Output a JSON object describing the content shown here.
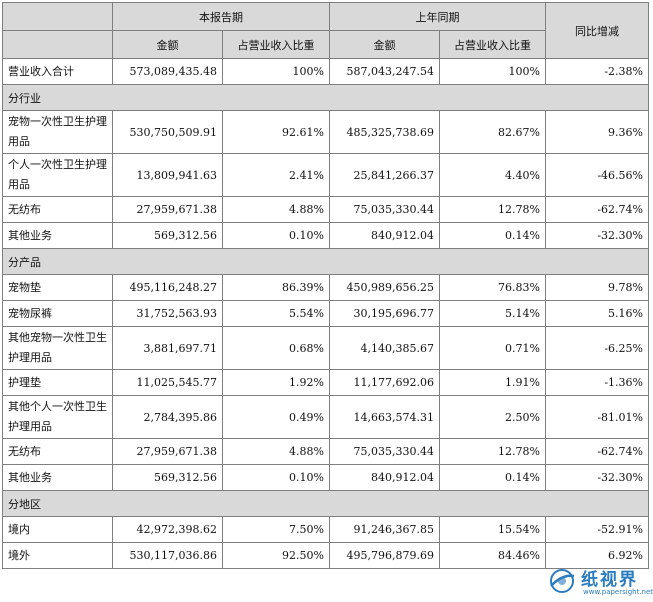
{
  "header": {
    "current_period": "本报告期",
    "prior_period": "上年同期",
    "yoy_change": "同比增减",
    "amount": "金额",
    "share": "占营业收入比重"
  },
  "total": {
    "label": "营业收入合计",
    "cur_amount": "573,089,435.48",
    "cur_share": "100%",
    "prev_amount": "587,043,247.54",
    "prev_share": "100%",
    "change": "-2.38%"
  },
  "by_industry": {
    "title": "分行业",
    "rows": [
      {
        "label": "宠物一次性卫生护理用品",
        "cur_amount": "530,750,509.91",
        "cur_share": "92.61%",
        "prev_amount": "485,325,738.69",
        "prev_share": "82.67%",
        "change": "9.36%"
      },
      {
        "label": "个人一次性卫生护理用品",
        "cur_amount": "13,809,941.63",
        "cur_share": "2.41%",
        "prev_amount": "25,841,266.37",
        "prev_share": "4.40%",
        "change": "-46.56%"
      },
      {
        "label": "无纺布",
        "cur_amount": "27,959,671.38",
        "cur_share": "4.88%",
        "prev_amount": "75,035,330.44",
        "prev_share": "12.78%",
        "change": "-62.74%"
      },
      {
        "label": "其他业务",
        "cur_amount": "569,312.56",
        "cur_share": "0.10%",
        "prev_amount": "840,912.04",
        "prev_share": "0.14%",
        "change": "-32.30%"
      }
    ]
  },
  "by_product": {
    "title": "分产品",
    "rows": [
      {
        "label": "宠物垫",
        "cur_amount": "495,116,248.27",
        "cur_share": "86.39%",
        "prev_amount": "450,989,656.25",
        "prev_share": "76.83%",
        "change": "9.78%"
      },
      {
        "label": "宠物尿裤",
        "cur_amount": "31,752,563.93",
        "cur_share": "5.54%",
        "prev_amount": "30,195,696.77",
        "prev_share": "5.14%",
        "change": "5.16%"
      },
      {
        "label": "其他宠物一次性卫生护理用品",
        "cur_amount": "3,881,697.71",
        "cur_share": "0.68%",
        "prev_amount": "4,140,385.67",
        "prev_share": "0.71%",
        "change": "-6.25%"
      },
      {
        "label": "护理垫",
        "cur_amount": "11,025,545.77",
        "cur_share": "1.92%",
        "prev_amount": "11,177,692.06",
        "prev_share": "1.91%",
        "change": "-1.36%"
      },
      {
        "label": "其他个人一次性卫生护理用品",
        "cur_amount": "2,784,395.86",
        "cur_share": "0.49%",
        "prev_amount": "14,663,574.31",
        "prev_share": "2.50%",
        "change": "-81.01%"
      },
      {
        "label": "无纺布",
        "cur_amount": "27,959,671.38",
        "cur_share": "4.88%",
        "prev_amount": "75,035,330.44",
        "prev_share": "12.78%",
        "change": "-62.74%"
      },
      {
        "label": "其他业务",
        "cur_amount": "569,312.56",
        "cur_share": "0.10%",
        "prev_amount": "840,912.04",
        "prev_share": "0.14%",
        "change": "-32.30%"
      }
    ]
  },
  "by_region": {
    "title": "分地区",
    "rows": [
      {
        "label": "境内",
        "cur_amount": "42,972,398.62",
        "cur_share": "7.50%",
        "prev_amount": "91,246,367.85",
        "prev_share": "15.54%",
        "change": "-52.91%"
      },
      {
        "label": "境外",
        "cur_amount": "530,117,036.86",
        "cur_share": "92.50%",
        "prev_amount": "495,796,879.69",
        "prev_share": "84.46%",
        "change": "6.92%"
      }
    ]
  },
  "watermark": {
    "brand": "纸视界",
    "url": "www.papersight.net",
    "logo_icon": "globe-swoosh-icon",
    "color": "#2b7bbf"
  }
}
